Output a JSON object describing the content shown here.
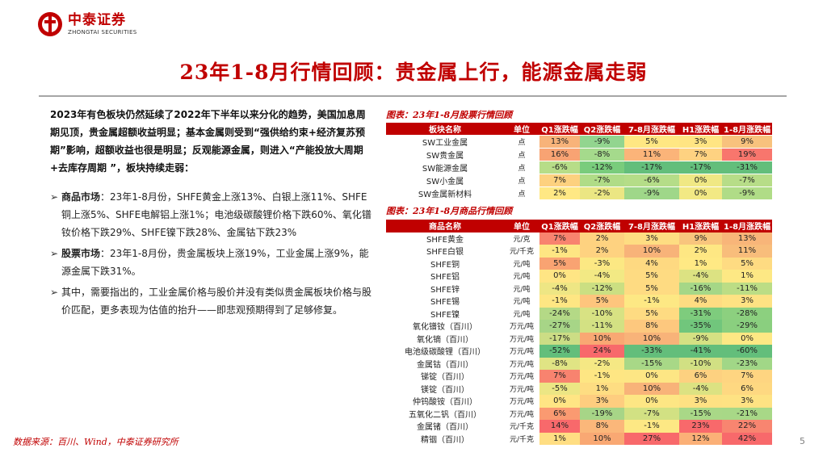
{
  "brand": {
    "name_cn": "中泰证券",
    "name_en": "ZHONGTAI SECURITIES",
    "color": "#c00000"
  },
  "title": "23年1-8月行情回顾：贵金属上行，能源金属走弱",
  "left": {
    "intro": "2023年有色板块仍然延续了2022年下半年以来分化的趋势，美国加息周期见顶，贵金属超额收益明显；基本金属则受到“强供给约束+经济复苏预期”影响，超额收益也很是明显；反观能源金属，则进入“产能投放大周期+去库存周期 ”，板块持续走弱：",
    "bullets": [
      {
        "head": "商品市场",
        "text": "：23年1-8月份，SHFE黄金上涨13%、白银上涨11%、SHFE铜上涨5%、SHFE电解铝上涨1%；电池级碳酸锂价格下跌60%、氧化镨钕价格下跌29%、SHFE镍下跌28%、金属钴下跌23%"
      },
      {
        "head": "股票市场",
        "text": "：23年1-8月份，贵金属板块上涨19%，工业金属上涨9%，能源金属下跌31%。"
      },
      {
        "head": "",
        "text": "其中，需要指出的，工业金属价格与股价并没有类似贵金属板块价格与股价匹配，更多表现为估值的抬升——即悲观预期得到了足够修复。"
      }
    ]
  },
  "caption1": "图表：23年1-8月股票行情回顾",
  "caption2": "图表：23年1-8月商品行情回顾",
  "table1": {
    "headers": [
      "板块名称",
      "单位",
      "Q1涨跌幅",
      "Q2涨跌幅",
      "7-8月涨跌幅",
      "H1涨跌幅",
      "1-8月涨跌幅"
    ],
    "rows": [
      {
        "name": "SW工业金属",
        "unit": "点",
        "vals": [
          "13%",
          "-9%",
          "5%",
          "3%",
          "9%"
        ],
        "colors": [
          "#f8b37a",
          "#92d58f",
          "#ffe783",
          "#ffe583",
          "#f8c27d"
        ]
      },
      {
        "name": "SW贵金属",
        "unit": "点",
        "vals": [
          "16%",
          "-8%",
          "11%",
          "7%",
          "19%"
        ],
        "colors": [
          "#f8a373",
          "#a5da8c",
          "#fbb479",
          "#fed281",
          "#f8766d"
        ]
      },
      {
        "name": "SW能源金属",
        "unit": "点",
        "vals": [
          "-6%",
          "-12%",
          "-17%",
          "-17%",
          "-31%"
        ],
        "colors": [
          "#b7dd88",
          "#79cc7c",
          "#63be7b",
          "#63be7b",
          "#63be7b"
        ]
      },
      {
        "name": "SW小金属",
        "unit": "点",
        "vals": [
          "7%",
          "-7%",
          "-6%",
          "0%",
          "-7%"
        ],
        "colors": [
          "#fdd17f",
          "#b0dc87",
          "#b5dd88",
          "#f0e884",
          "#b7dd88"
        ]
      },
      {
        "name": "SW金属新材料",
        "unit": "点",
        "vals": [
          "2%",
          "-2%",
          "-9%",
          "0%",
          "-9%"
        ],
        "colors": [
          "#ffe884",
          "#ebe683",
          "#9fd789",
          "#f2e984",
          "#b0dc87"
        ]
      }
    ]
  },
  "table2": {
    "headers": [
      "商品名称",
      "单位",
      "Q1涨跌幅",
      "Q2涨跌幅",
      "7-8月涨跌幅",
      "H1涨跌幅",
      "1-8月涨跌幅"
    ],
    "rows": [
      {
        "name": "SHFE黄金",
        "unit": "元/克",
        "vals": [
          "7%",
          "2%",
          "3%",
          "9%",
          "13%"
        ],
        "colors": [
          "#f8836f",
          "#fed280",
          "#fedd82",
          "#f8c57d",
          "#f8b579"
        ]
      },
      {
        "name": "SHFE白银",
        "unit": "元/千克",
        "vals": [
          "-1%",
          "2%",
          "10%",
          "2%",
          "11%"
        ],
        "colors": [
          "#fee683",
          "#fed280",
          "#f8b379",
          "#fee783",
          "#f8bd7b"
        ]
      },
      {
        "name": "SHFE铜",
        "unit": "元/吨",
        "vals": [
          "5%",
          "-3%",
          "4%",
          "1%",
          "5%"
        ],
        "colors": [
          "#f9a372",
          "#fce883",
          "#fed981",
          "#ffe984",
          "#fedb82"
        ]
      },
      {
        "name": "SHFE铝",
        "unit": "元/吨",
        "vals": [
          "0%",
          "-4%",
          "5%",
          "-4%",
          "1%"
        ],
        "colors": [
          "#ffe584",
          "#f2e984",
          "#fedb82",
          "#dce282",
          "#fde884"
        ]
      },
      {
        "name": "SHFE锌",
        "unit": "元/吨",
        "vals": [
          "-4%",
          "-12%",
          "5%",
          "-16%",
          "-11%"
        ],
        "colors": [
          "#eee684",
          "#cbdf82",
          "#fedb82",
          "#a5d787",
          "#bcdd85"
        ]
      },
      {
        "name": "SHFE锡",
        "unit": "元/吨",
        "vals": [
          "-1%",
          "5%",
          "-1%",
          "4%",
          "3%"
        ],
        "colors": [
          "#fee683",
          "#fec57d",
          "#fde884",
          "#fedc82",
          "#fee283"
        ]
      },
      {
        "name": "SHFE镍",
        "unit": "元/吨",
        "vals": [
          "-24%",
          "-10%",
          "5%",
          "-31%",
          "-28%"
        ],
        "colors": [
          "#b4d986",
          "#d8e283",
          "#fedb82",
          "#7ecc7d",
          "#8cd07f"
        ]
      },
      {
        "name": "氧化镨钕（百川）",
        "unit": "万元/吨",
        "vals": [
          "-27%",
          "-11%",
          "8%",
          "-35%",
          "-29%"
        ],
        "colors": [
          "#a7d587",
          "#d3e183",
          "#fdc87e",
          "#71c67c",
          "#8acf7f"
        ]
      },
      {
        "name": "氧化镝（百川）",
        "unit": "万元/吨",
        "vals": [
          "-17%",
          "10%",
          "10%",
          "-9%",
          "0%"
        ],
        "colors": [
          "#ccdd85",
          "#f9a873",
          "#f8b379",
          "#d5e183",
          "#fde884"
        ]
      },
      {
        "name": "电池级碳酸锂（百川）",
        "unit": "万元/吨",
        "vals": [
          "-52%",
          "24%",
          "-33%",
          "-41%",
          "-60%"
        ],
        "colors": [
          "#63be7b",
          "#f8696b",
          "#63be7b",
          "#63be7b",
          "#63be7b"
        ]
      },
      {
        "name": "金属钴（百川）",
        "unit": "万元/吨",
        "vals": [
          "-8%",
          "-2%",
          "-15%",
          "-10%",
          "-23%"
        ],
        "colors": [
          "#e0e484",
          "#f5e884",
          "#a8d887",
          "#d1e083",
          "#a1d787"
        ]
      },
      {
        "name": "锑锭（百川）",
        "unit": "万元/吨",
        "vals": [
          "7%",
          "-1%",
          "0%",
          "6%",
          "7%"
        ],
        "colors": [
          "#f8836f",
          "#fee683",
          "#fde684",
          "#fdd180",
          "#fed581"
        ]
      },
      {
        "name": "镁锭（百川）",
        "unit": "万元/吨",
        "vals": [
          "-5%",
          "1%",
          "10%",
          "-4%",
          "6%"
        ],
        "colors": [
          "#ece684",
          "#fedd82",
          "#f8b379",
          "#dce282",
          "#fed881"
        ]
      },
      {
        "name": "仲钨酸铵（百川）",
        "unit": "万元/吨",
        "vals": [
          "0%",
          "3%",
          "0%",
          "3%",
          "3%"
        ],
        "colors": [
          "#ffe584",
          "#fecd7f",
          "#fde684",
          "#fee183",
          "#fee283"
        ]
      },
      {
        "name": "五氧化二钒（百川）",
        "unit": "万元/吨",
        "vals": [
          "6%",
          "-19%",
          "-7%",
          "-15%",
          "-21%"
        ],
        "colors": [
          "#fa9a71",
          "#a7d587",
          "#d2e183",
          "#a9d887",
          "#a8d887"
        ]
      },
      {
        "name": "金属锗（百川）",
        "unit": "元/千克",
        "vals": [
          "14%",
          "8%",
          "-1%",
          "23%",
          "22%"
        ],
        "colors": [
          "#f8696b",
          "#fbb77a",
          "#fde884",
          "#f8696b",
          "#f88570"
        ]
      },
      {
        "name": "精铟（百川）",
        "unit": "元/千克",
        "vals": [
          "1%",
          "10%",
          "27%",
          "12%",
          "42%"
        ],
        "colors": [
          "#ffde83",
          "#f9a873",
          "#f8696b",
          "#fbb077",
          "#f8696b"
        ]
      }
    ]
  },
  "source": "数据来源：百川、Wind，中泰证券研究所",
  "page_number": "5"
}
